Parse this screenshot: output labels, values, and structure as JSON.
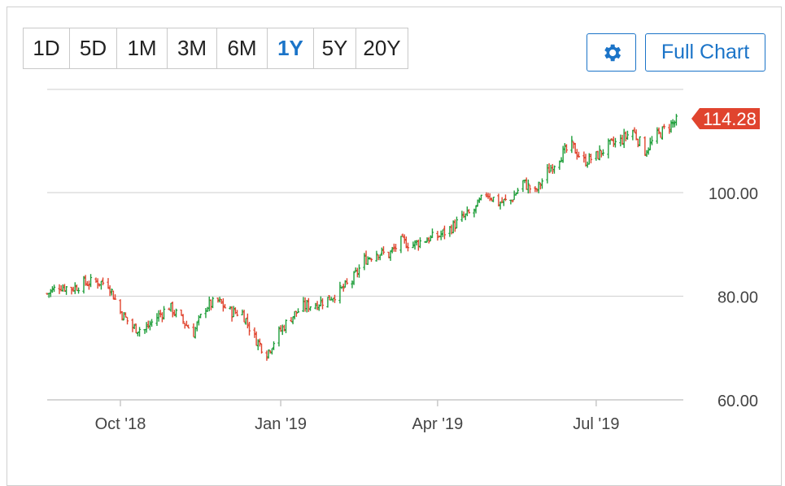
{
  "toolbar": {
    "ranges": [
      "1D",
      "5D",
      "1M",
      "3M",
      "6M",
      "1Y",
      "5Y",
      "20Y"
    ],
    "active_range": "1Y",
    "settings_icon": "gear-icon",
    "full_chart_label": "Full Chart"
  },
  "colors": {
    "accent": "#1b74c8",
    "up": "#1e9e3a",
    "down": "#e0442e",
    "badge": "#e0442e",
    "grid": "#d6d6d6"
  },
  "chart_data": {
    "type": "line",
    "style": "ohlc-bars",
    "last_price": "114.28",
    "y_ticks": [
      "60.00",
      "80.00",
      "100.00"
    ],
    "ylim": [
      60,
      118
    ],
    "x_ticks": [
      "Oct '18",
      "Jan '19",
      "Apr '19",
      "Jul '19"
    ],
    "grid": true,
    "series": [
      {
        "x": [
          "2018-08-20",
          "2018-08-27",
          "2018-09-03",
          "2018-09-10",
          "2018-09-17",
          "2018-09-24",
          "2018-10-01",
          "2018-10-08",
          "2018-10-15",
          "2018-10-22",
          "2018-10-29",
          "2018-11-05",
          "2018-11-12",
          "2018-11-19",
          "2018-11-26",
          "2018-12-03",
          "2018-12-10",
          "2018-12-17",
          "2018-12-24",
          "2018-12-31",
          "2019-01-07",
          "2019-01-14",
          "2019-01-21",
          "2019-01-28",
          "2019-02-04",
          "2019-02-11",
          "2019-02-18",
          "2019-02-25",
          "2019-03-04",
          "2019-03-11",
          "2019-03-18",
          "2019-03-25",
          "2019-04-01",
          "2019-04-08",
          "2019-04-15",
          "2019-04-22",
          "2019-04-29",
          "2019-05-06",
          "2019-05-13",
          "2019-05-20",
          "2019-05-27",
          "2019-06-03",
          "2019-06-10",
          "2019-06-17",
          "2019-06-24",
          "2019-07-01",
          "2019-07-08",
          "2019-07-15",
          "2019-07-22",
          "2019-07-29",
          "2019-08-05",
          "2019-08-12",
          "2019-08-19"
        ],
        "values": [
          80.5,
          82,
          81.5,
          82.5,
          82.8,
          82.5,
          77,
          74,
          73.5,
          76,
          78,
          75.5,
          73,
          78,
          79,
          77,
          76.8,
          72,
          69,
          73,
          76,
          78,
          78.5,
          79.5,
          81,
          83,
          87,
          88.5,
          88,
          90.5,
          90,
          91,
          91.5,
          93,
          95,
          96.5,
          100,
          98,
          98.5,
          102,
          100,
          104,
          107,
          109,
          106,
          107,
          109,
          110,
          112,
          108,
          111,
          113,
          114.28
        ]
      }
    ]
  }
}
